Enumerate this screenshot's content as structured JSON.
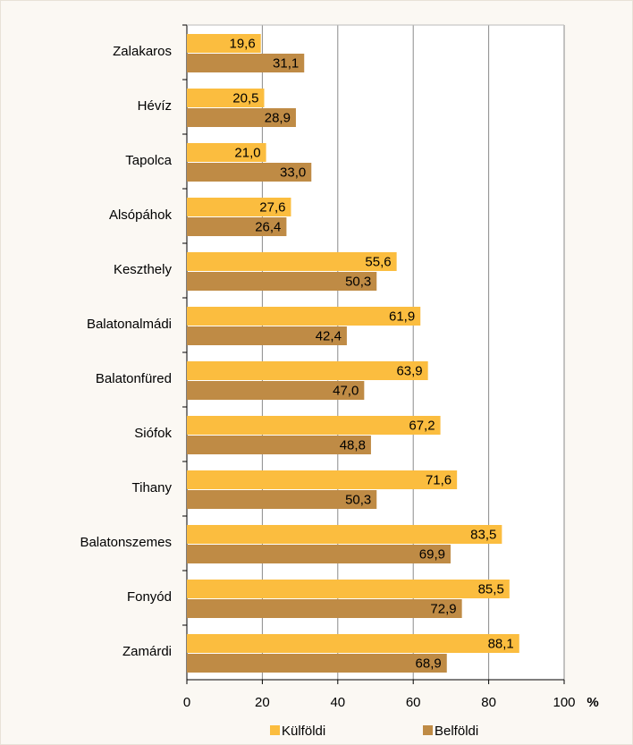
{
  "chart_data": {
    "type": "hbar",
    "categories": [
      "Zalakaros",
      "Hévíz",
      "Tapolca",
      "Alsópáhok",
      "Keszthely",
      "Balatonalmádi",
      "Balatonfüred",
      "Siófok",
      "Tihany",
      "Balatonszemes",
      "Fonyód",
      "Zamárdi"
    ],
    "series": [
      {
        "name": "Külföldi",
        "color": "#fbbd3f",
        "values": [
          19.6,
          20.5,
          21.0,
          27.6,
          55.6,
          61.9,
          63.9,
          67.2,
          71.6,
          83.5,
          85.5,
          88.1
        ],
        "value_labels": [
          "19,6",
          "20,5",
          "21,0",
          "27,6",
          "55,6",
          "61,9",
          "63,9",
          "67,2",
          "71,6",
          "83,5",
          "85,5",
          "88,1"
        ]
      },
      {
        "name": "Belföldi",
        "color": "#bf8b45",
        "values": [
          31.1,
          28.9,
          33.0,
          26.4,
          50.3,
          42.4,
          47.0,
          48.8,
          50.3,
          69.9,
          72.9,
          68.9
        ],
        "value_labels": [
          "31,1",
          "28,9",
          "33,0",
          "26,4",
          "50,3",
          "42,4",
          "47,0",
          "48,8",
          "50,3",
          "69,9",
          "72,9",
          "68,9"
        ]
      }
    ],
    "xlabel": "%",
    "xlim": [
      0,
      100
    ],
    "xticks": [
      0,
      20,
      40,
      60,
      80,
      100
    ],
    "grid": true,
    "legend": "bottom"
  }
}
